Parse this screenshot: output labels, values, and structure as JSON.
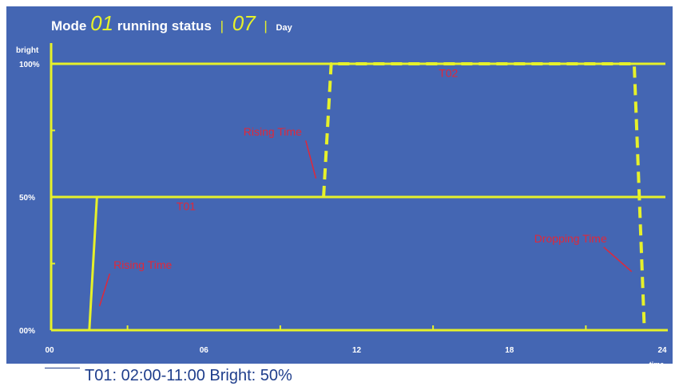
{
  "header": {
    "mode_label": "Mode",
    "mode_value": "01",
    "status_label": "running status",
    "separator": "|",
    "day_value": "07",
    "day_label": "Day"
  },
  "legend": {
    "text": "T01: 02:00-11:00   Bright: 50%"
  },
  "colors": {
    "background": "#4466b3",
    "line": "#e6f12a",
    "annotation": "#e0283a",
    "text": "#ffffff"
  },
  "chart_data": {
    "type": "line",
    "xlabel": "time",
    "ylabel": "bright",
    "xlim": [
      0,
      24
    ],
    "ylim": [
      0,
      100
    ],
    "x_ticks": [
      "00",
      "06",
      "12",
      "18",
      "24"
    ],
    "y_ticks": [
      "00%",
      "50%",
      "100%"
    ],
    "grid": false,
    "series": [
      {
        "name": "T01",
        "style": "solid",
        "x": [
          1.5,
          1.8,
          24
        ],
        "y": [
          0,
          50,
          50
        ]
      },
      {
        "name": "T02",
        "style": "dashed",
        "x": [
          10.7,
          11.0,
          22.9,
          23.3
        ],
        "y": [
          50,
          100,
          100,
          0
        ]
      }
    ],
    "reference_lines": [
      {
        "y": 100
      },
      {
        "y": 50
      }
    ],
    "annotations": [
      {
        "text": "T01",
        "x": 5.3,
        "y": 45
      },
      {
        "text": "T02",
        "x": 15.6,
        "y": 95
      },
      {
        "text": "Rising Time",
        "x": 3.6,
        "y": 23,
        "arrow_to": [
          1.9,
          9
        ]
      },
      {
        "text": "Rising Time",
        "x": 8.7,
        "y": 73,
        "arrow_to": [
          10.4,
          57
        ]
      },
      {
        "text": "Dropping Time",
        "x": 20.4,
        "y": 33,
        "arrow_to": [
          22.8,
          22
        ]
      }
    ]
  }
}
